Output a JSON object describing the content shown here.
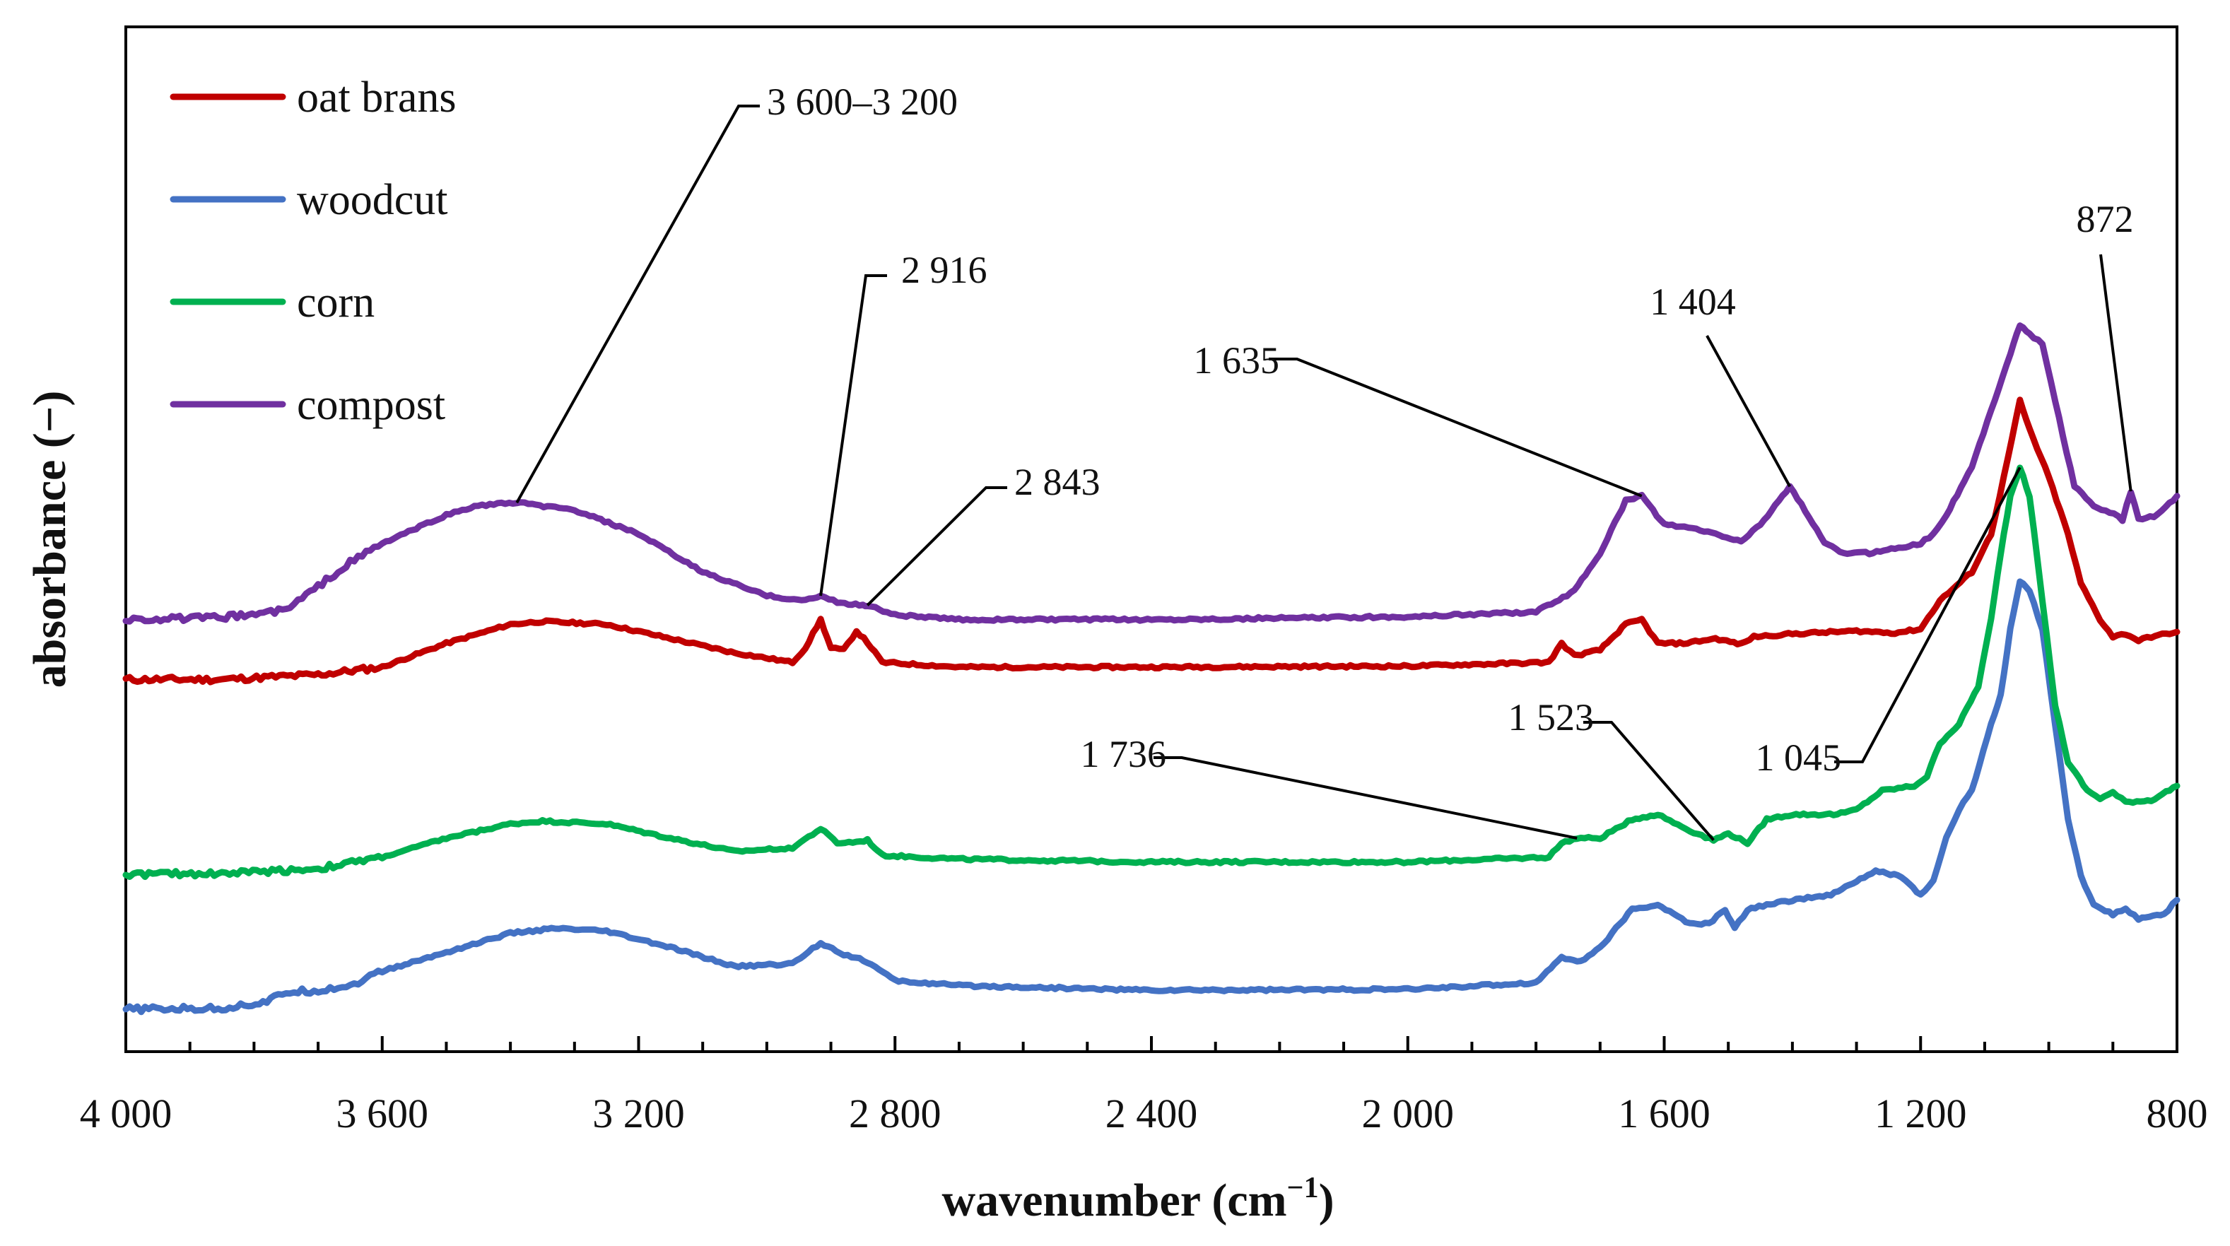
{
  "chart_data": {
    "type": "line",
    "title": "",
    "xlabel": "wavenumber (cm",
    "xlabel_sup": "−1",
    "xlabel_close": ")",
    "ylabel": "absorbance (−)",
    "xlim": [
      4000,
      800
    ],
    "x_reversed": true,
    "ylim": [
      0,
      1
    ],
    "y_ticks_shown": false,
    "x_ticks": [
      {
        "value": 4000,
        "label": "4 000"
      },
      {
        "value": 3600,
        "label": "3 600"
      },
      {
        "value": 3200,
        "label": "3 200"
      },
      {
        "value": 2800,
        "label": "2 800"
      },
      {
        "value": 2400,
        "label": "2 400"
      },
      {
        "value": 2000,
        "label": "2 000"
      },
      {
        "value": 1600,
        "label": "1 600"
      },
      {
        "value": 1200,
        "label": "1 200"
      },
      {
        "value": 800,
        "label": "800"
      }
    ],
    "minor_tick_step": 100,
    "legend_position": "top-left",
    "series": [
      {
        "name": "oat brans",
        "color": "#C00000",
        "points": [
          [
            4000,
            0.367
          ],
          [
            3850,
            0.367
          ],
          [
            3700,
            0.372
          ],
          [
            3600,
            0.38
          ],
          [
            3500,
            0.405
          ],
          [
            3400,
            0.425
          ],
          [
            3350,
            0.428
          ],
          [
            3250,
            0.425
          ],
          [
            3150,
            0.41
          ],
          [
            3050,
            0.395
          ],
          [
            2960,
            0.385
          ],
          [
            2940,
            0.4
          ],
          [
            2916,
            0.43
          ],
          [
            2900,
            0.4
          ],
          [
            2880,
            0.398
          ],
          [
            2860,
            0.418
          ],
          [
            2843,
            0.406
          ],
          [
            2820,
            0.385
          ],
          [
            2700,
            0.38
          ],
          [
            2400,
            0.38
          ],
          [
            2000,
            0.381
          ],
          [
            1780,
            0.385
          ],
          [
            1760,
            0.405
          ],
          [
            1740,
            0.392
          ],
          [
            1700,
            0.398
          ],
          [
            1660,
            0.425
          ],
          [
            1635,
            0.43
          ],
          [
            1610,
            0.405
          ],
          [
            1570,
            0.405
          ],
          [
            1520,
            0.41
          ],
          [
            1480,
            0.404
          ],
          [
            1460,
            0.412
          ],
          [
            1400,
            0.415
          ],
          [
            1300,
            0.418
          ],
          [
            1240,
            0.416
          ],
          [
            1200,
            0.42
          ],
          [
            1170,
            0.45
          ],
          [
            1150,
            0.462
          ],
          [
            1120,
            0.48
          ],
          [
            1090,
            0.52
          ],
          [
            1070,
            0.58
          ],
          [
            1045,
            0.66
          ],
          [
            1030,
            0.63
          ],
          [
            1000,
            0.58
          ],
          [
            970,
            0.52
          ],
          [
            950,
            0.468
          ],
          [
            920,
            0.43
          ],
          [
            900,
            0.412
          ],
          [
            880,
            0.415
          ],
          [
            860,
            0.408
          ],
          [
            840,
            0.412
          ],
          [
            800,
            0.417
          ]
        ]
      },
      {
        "name": "woodcut",
        "color": "#4472C4",
        "points": [
          [
            4000,
            0.02
          ],
          [
            3850,
            0.021
          ],
          [
            3780,
            0.028
          ],
          [
            3750,
            0.038
          ],
          [
            3700,
            0.04
          ],
          [
            3650,
            0.045
          ],
          [
            3600,
            0.06
          ],
          [
            3500,
            0.08
          ],
          [
            3400,
            0.1
          ],
          [
            3330,
            0.105
          ],
          [
            3250,
            0.102
          ],
          [
            3150,
            0.085
          ],
          [
            3050,
            0.065
          ],
          [
            2960,
            0.068
          ],
          [
            2916,
            0.09
          ],
          [
            2880,
            0.078
          ],
          [
            2843,
            0.07
          ],
          [
            2800,
            0.05
          ],
          [
            2700,
            0.045
          ],
          [
            2400,
            0.04
          ],
          [
            2000,
            0.041
          ],
          [
            1800,
            0.048
          ],
          [
            1760,
            0.075
          ],
          [
            1730,
            0.07
          ],
          [
            1700,
            0.085
          ],
          [
            1650,
            0.125
          ],
          [
            1610,
            0.13
          ],
          [
            1560,
            0.11
          ],
          [
            1530,
            0.11
          ],
          [
            1505,
            0.125
          ],
          [
            1490,
            0.105
          ],
          [
            1470,
            0.125
          ],
          [
            1440,
            0.13
          ],
          [
            1400,
            0.135
          ],
          [
            1340,
            0.14
          ],
          [
            1300,
            0.155
          ],
          [
            1270,
            0.165
          ],
          [
            1230,
            0.16
          ],
          [
            1200,
            0.14
          ],
          [
            1180,
            0.155
          ],
          [
            1160,
            0.2
          ],
          [
            1140,
            0.23
          ],
          [
            1120,
            0.25
          ],
          [
            1090,
            0.32
          ],
          [
            1075,
            0.35
          ],
          [
            1060,
            0.42
          ],
          [
            1045,
            0.47
          ],
          [
            1030,
            0.46
          ],
          [
            1010,
            0.42
          ],
          [
            990,
            0.32
          ],
          [
            970,
            0.22
          ],
          [
            950,
            0.16
          ],
          [
            930,
            0.13
          ],
          [
            900,
            0.12
          ],
          [
            880,
            0.125
          ],
          [
            860,
            0.115
          ],
          [
            820,
            0.12
          ],
          [
            800,
            0.135
          ]
        ]
      },
      {
        "name": "corn",
        "color": "#00B050",
        "points": [
          [
            4000,
            0.162
          ],
          [
            3850,
            0.163
          ],
          [
            3700,
            0.168
          ],
          [
            3600,
            0.18
          ],
          [
            3500,
            0.2
          ],
          [
            3400,
            0.215
          ],
          [
            3350,
            0.218
          ],
          [
            3250,
            0.215
          ],
          [
            3150,
            0.2
          ],
          [
            3050,
            0.186
          ],
          [
            2960,
            0.19
          ],
          [
            2916,
            0.21
          ],
          [
            2890,
            0.195
          ],
          [
            2860,
            0.196
          ],
          [
            2843,
            0.198
          ],
          [
            2820,
            0.182
          ],
          [
            2700,
            0.178
          ],
          [
            2400,
            0.175
          ],
          [
            2000,
            0.175
          ],
          [
            1780,
            0.18
          ],
          [
            1760,
            0.195
          ],
          [
            1736,
            0.2
          ],
          [
            1700,
            0.2
          ],
          [
            1650,
            0.22
          ],
          [
            1610,
            0.225
          ],
          [
            1560,
            0.208
          ],
          [
            1523,
            0.198
          ],
          [
            1500,
            0.205
          ],
          [
            1470,
            0.195
          ],
          [
            1440,
            0.22
          ],
          [
            1400,
            0.225
          ],
          [
            1330,
            0.225
          ],
          [
            1300,
            0.23
          ],
          [
            1260,
            0.25
          ],
          [
            1210,
            0.255
          ],
          [
            1190,
            0.265
          ],
          [
            1170,
            0.3
          ],
          [
            1140,
            0.32
          ],
          [
            1110,
            0.36
          ],
          [
            1090,
            0.43
          ],
          [
            1075,
            0.5
          ],
          [
            1060,
            0.56
          ],
          [
            1045,
            0.59
          ],
          [
            1030,
            0.56
          ],
          [
            1010,
            0.45
          ],
          [
            990,
            0.34
          ],
          [
            970,
            0.28
          ],
          [
            940,
            0.25
          ],
          [
            920,
            0.242
          ],
          [
            900,
            0.248
          ],
          [
            880,
            0.238
          ],
          [
            840,
            0.24
          ],
          [
            800,
            0.255
          ]
        ]
      },
      {
        "name": "compost",
        "color": "#7030A0",
        "points": [
          [
            4000,
            0.43
          ],
          [
            3850,
            0.432
          ],
          [
            3750,
            0.44
          ],
          [
            3700,
            0.465
          ],
          [
            3650,
            0.49
          ],
          [
            3600,
            0.51
          ],
          [
            3500,
            0.54
          ],
          [
            3450,
            0.55
          ],
          [
            3390,
            0.553
          ],
          [
            3300,
            0.545
          ],
          [
            3200,
            0.52
          ],
          [
            3100,
            0.48
          ],
          [
            3000,
            0.455
          ],
          [
            2940,
            0.45
          ],
          [
            2916,
            0.455
          ],
          [
            2890,
            0.448
          ],
          [
            2850,
            0.445
          ],
          [
            2843,
            0.445
          ],
          [
            2800,
            0.435
          ],
          [
            2700,
            0.43
          ],
          [
            2400,
            0.43
          ],
          [
            2000,
            0.433
          ],
          [
            1800,
            0.438
          ],
          [
            1740,
            0.46
          ],
          [
            1700,
            0.5
          ],
          [
            1660,
            0.555
          ],
          [
            1635,
            0.56
          ],
          [
            1600,
            0.53
          ],
          [
            1550,
            0.525
          ],
          [
            1520,
            0.52
          ],
          [
            1480,
            0.512
          ],
          [
            1450,
            0.53
          ],
          [
            1404,
            0.57
          ],
          [
            1380,
            0.545
          ],
          [
            1350,
            0.51
          ],
          [
            1320,
            0.5
          ],
          [
            1280,
            0.5
          ],
          [
            1240,
            0.505
          ],
          [
            1200,
            0.51
          ],
          [
            1180,
            0.52
          ],
          [
            1160,
            0.54
          ],
          [
            1120,
            0.59
          ],
          [
            1090,
            0.65
          ],
          [
            1060,
            0.71
          ],
          [
            1045,
            0.74
          ],
          [
            1030,
            0.73
          ],
          [
            1010,
            0.72
          ],
          [
            990,
            0.66
          ],
          [
            960,
            0.57
          ],
          [
            930,
            0.55
          ],
          [
            905,
            0.543
          ],
          [
            885,
            0.535
          ],
          [
            872,
            0.565
          ],
          [
            860,
            0.535
          ],
          [
            830,
            0.54
          ],
          [
            800,
            0.56
          ]
        ]
      }
    ],
    "annotations": [
      {
        "label": "3 600–3 200",
        "x": 3390,
        "series": "compost"
      },
      {
        "label": "2 916",
        "x": 2916,
        "series": "compost"
      },
      {
        "label": "2 843",
        "x": 2843,
        "series": "compost"
      },
      {
        "label": "1 635",
        "x": 1635,
        "series": "compost"
      },
      {
        "label": "1 404",
        "x": 1404,
        "series": "compost"
      },
      {
        "label": "872",
        "x": 872,
        "series": "compost"
      },
      {
        "label": "1 736",
        "x": 1736,
        "series": "corn"
      },
      {
        "label": "1 523",
        "x": 1523,
        "series": "corn"
      },
      {
        "label": "1 045",
        "x": 1045,
        "series": "corn"
      }
    ]
  }
}
